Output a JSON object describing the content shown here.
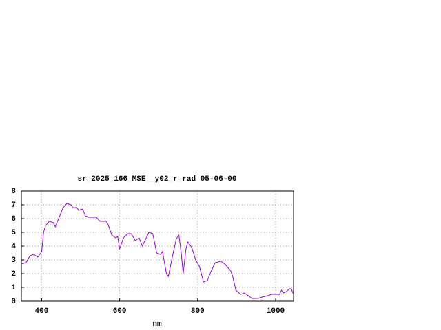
{
  "chart_data": {
    "type": "line",
    "title": "sr_2025_166_MSE__y02_r_rad 05-06-00",
    "x_label": "nm",
    "x": [
      348,
      360,
      370,
      380,
      390,
      400,
      405,
      410,
      420,
      430,
      435,
      445,
      455,
      465,
      475,
      480,
      490,
      495,
      505,
      512,
      520,
      540,
      550,
      565,
      570,
      580,
      590,
      595,
      600,
      610,
      620,
      630,
      640,
      650,
      658,
      665,
      675,
      685,
      695,
      705,
      710,
      720,
      725,
      735,
      745,
      752,
      758,
      763,
      770,
      775,
      785,
      795,
      805,
      815,
      825,
      835,
      845,
      860,
      870,
      885,
      890,
      898,
      910,
      920,
      930,
      940,
      955,
      965,
      980,
      990,
      1010,
      1015,
      1020,
      1028,
      1035,
      1040,
      1046
    ],
    "series": [
      {
        "name": "sr_2025_166_MSE__y02_r_rad",
        "color": "#9400d3",
        "values": [
          2.7,
          2.8,
          3.3,
          3.4,
          3.2,
          3.6,
          5.0,
          5.5,
          5.8,
          5.7,
          5.4,
          6.1,
          6.8,
          7.1,
          7.0,
          6.8,
          6.8,
          6.6,
          6.7,
          6.2,
          6.1,
          6.1,
          5.8,
          5.8,
          5.6,
          4.8,
          4.6,
          4.7,
          3.8,
          4.6,
          4.9,
          4.9,
          4.4,
          4.6,
          4.0,
          4.4,
          5.0,
          4.9,
          3.5,
          3.4,
          3.6,
          2.0,
          1.8,
          3.2,
          4.5,
          4.8,
          3.5,
          2.0,
          3.8,
          4.3,
          3.9,
          3.0,
          2.5,
          1.4,
          1.5,
          2.2,
          2.8,
          2.9,
          2.7,
          2.2,
          1.8,
          0.8,
          0.5,
          0.6,
          0.4,
          0.2,
          0.2,
          0.3,
          0.4,
          0.5,
          0.5,
          0.8,
          0.6,
          0.7,
          0.9,
          0.9,
          0.5
        ]
      }
    ],
    "xlim": [
      348,
      1046
    ],
    "ylim": [
      0,
      8
    ],
    "xticks": [
      400,
      600,
      800,
      1000
    ],
    "yticks": [
      0,
      1,
      2,
      3,
      4,
      5,
      6,
      7,
      8
    ],
    "grid": true
  }
}
